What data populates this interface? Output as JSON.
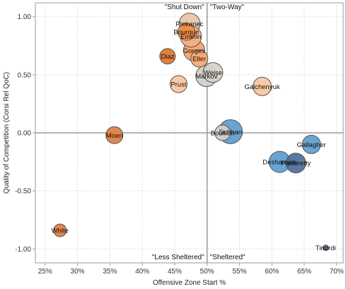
{
  "chart_data": {
    "type": "scatter",
    "xlabel": "Offensive Zone Start %",
    "ylabel": "Quality of Competition (Corsi Rel QoC)",
    "xlim": [
      23.5,
      71
    ],
    "ylim": [
      -1.12,
      1.12
    ],
    "x_ticks": [
      {
        "value": 25,
        "label": "25%"
      },
      {
        "value": 30,
        "label": "30%"
      },
      {
        "value": 35,
        "label": "35%"
      },
      {
        "value": 40,
        "label": "40%"
      },
      {
        "value": 45,
        "label": "45%"
      },
      {
        "value": 50,
        "label": "50%"
      },
      {
        "value": 55,
        "label": "55%"
      },
      {
        "value": 60,
        "label": "60%"
      },
      {
        "value": 65,
        "label": "65%"
      },
      {
        "value": 70,
        "label": "70%"
      }
    ],
    "y_ticks": [
      {
        "value": 1.0,
        "label": "1.00"
      },
      {
        "value": 0.5,
        "label": "0.50"
      },
      {
        "value": 0.0,
        "label": "0.00"
      },
      {
        "value": -0.5,
        "label": "-0.50"
      },
      {
        "value": -1.0,
        "label": "-1.00"
      }
    ],
    "grid": true,
    "reference_lines": {
      "x": 50,
      "y": 0
    },
    "quadrant_labels": [
      {
        "text": "\"Shut Down\"",
        "x": 50,
        "y": 1.12,
        "anchor": "end"
      },
      {
        "text": "\"Two-Way\"",
        "x": 50,
        "y": 1.12,
        "anchor": "start"
      },
      {
        "text": "\"Less Sheltered\"",
        "x": 50,
        "y": -1.12,
        "anchor": "end"
      },
      {
        "text": "\"Sheltered\"",
        "x": 50,
        "y": -1.12,
        "anchor": "start"
      }
    ],
    "points": [
      {
        "name": "Plekanec",
        "x": 47.3,
        "y": 0.94,
        "color": "#e8c3a6",
        "size": 15
      },
      {
        "name": "Bourque",
        "x": 46.8,
        "y": 0.87,
        "color": "#f28c3f",
        "size": 12
      },
      {
        "name": "Eller",
        "x": 48.8,
        "y": 0.64,
        "color": "#f8a870",
        "size": 12
      },
      {
        "name": "Gorges",
        "x": 48.0,
        "y": 0.71,
        "color": "#f5a168",
        "size": 15
      },
      {
        "name": "Emelin",
        "x": 47.5,
        "y": 0.83,
        "color": "#f6b07e",
        "size": 15
      },
      {
        "name": "Diaz",
        "x": 43.9,
        "y": 0.66,
        "color": "#e0742e",
        "size": 11
      },
      {
        "name": "Markov",
        "x": 49.9,
        "y": 0.49,
        "color": "#d4cdc6",
        "size": 15
      },
      {
        "name": "Weise",
        "x": 50.9,
        "y": 0.52,
        "color": "#d8d0c8",
        "size": 14
      },
      {
        "name": "Prust",
        "x": 45.6,
        "y": 0.42,
        "color": "#fbc69c",
        "size": 12
      },
      {
        "name": "Galchenyuk",
        "x": 58.5,
        "y": 0.4,
        "color": "#fbc69c",
        "size": 13
      },
      {
        "name": "Moen",
        "x": 35.7,
        "y": -0.02,
        "color": "#e07d3c",
        "size": 12
      },
      {
        "name": "Subban",
        "x": 53.6,
        "y": 0.01,
        "color": "#5e9ccc",
        "size": 17
      },
      {
        "name": "Bouillon",
        "x": 52.4,
        "y": 0.0,
        "color": "#d8d0c8",
        "size": 11
      },
      {
        "name": "Gallagher",
        "x": 66.1,
        "y": -0.1,
        "color": "#5e9ccc",
        "size": 13
      },
      {
        "name": "Desharnais",
        "x": 61.2,
        "y": -0.25,
        "color": "#5a9cd0",
        "size": 15
      },
      {
        "name": "Pacioretty",
        "x": 63.7,
        "y": -0.26,
        "color": "#4c6e96",
        "size": 14
      },
      {
        "name": "White",
        "x": 27.3,
        "y": -0.84,
        "color": "#e07d3c",
        "size": 9
      },
      {
        "name": "Tinordi",
        "x": 68.3,
        "y": -0.99,
        "color": "#4c6e96",
        "size": 4
      }
    ]
  }
}
